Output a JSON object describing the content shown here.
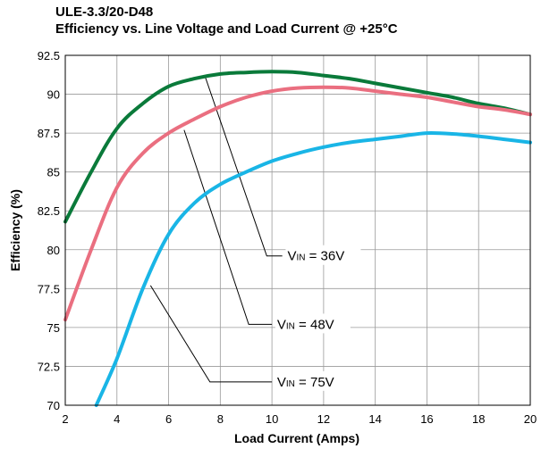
{
  "chart_data": {
    "type": "line",
    "title": "ULE-3.3/20-D48",
    "subtitle": "Efficiency vs. Line Voltage and Load Current @ +25°C",
    "xlabel": "Load Current (Amps)",
    "ylabel": "Efficiency (%)",
    "xlim": [
      2,
      20
    ],
    "ylim": [
      70,
      92.5
    ],
    "xticks": [
      "2",
      "4",
      "6",
      "8",
      "10",
      "12",
      "14",
      "16",
      "18",
      "20"
    ],
    "yticks": [
      "70",
      "72.5",
      "75",
      "77.5",
      "80",
      "82.5",
      "85",
      "87.5",
      "90",
      "92.5"
    ],
    "grid": true,
    "series": [
      {
        "label_prefix": "V",
        "label_sub": "IN",
        "label_suffix": " = 36V",
        "color": "#0a7a3a",
        "x": [
          2,
          3,
          4,
          5,
          6,
          7,
          8,
          9,
          10,
          11,
          12,
          13,
          14,
          15,
          16,
          17,
          18,
          19,
          20
        ],
        "y": [
          81.8,
          85.0,
          87.8,
          89.4,
          90.5,
          91.0,
          91.3,
          91.4,
          91.45,
          91.4,
          91.2,
          91.0,
          90.7,
          90.4,
          90.1,
          89.8,
          89.4,
          89.1,
          88.7
        ]
      },
      {
        "label_prefix": "V",
        "label_sub": "IN",
        "label_suffix": " = 48V",
        "color": "#ea6f80",
        "x": [
          2,
          3,
          4,
          5,
          6,
          7,
          8,
          9,
          10,
          11,
          12,
          13,
          14,
          15,
          16,
          17,
          18,
          19,
          20
        ],
        "y": [
          75.5,
          80.0,
          84.0,
          86.2,
          87.5,
          88.4,
          89.2,
          89.8,
          90.2,
          90.4,
          90.45,
          90.4,
          90.2,
          90.0,
          89.8,
          89.5,
          89.2,
          89.0,
          88.7
        ]
      },
      {
        "label_prefix": "V",
        "label_sub": "IN",
        "label_suffix": " = 75V",
        "color": "#19b5e6",
        "x": [
          3.2,
          4,
          5,
          6,
          7,
          8,
          9,
          10,
          11,
          12,
          13,
          14,
          15,
          16,
          17,
          18,
          19,
          20
        ],
        "y": [
          70.0,
          73.0,
          77.5,
          81.0,
          83.0,
          84.2,
          85.0,
          85.7,
          86.2,
          86.6,
          86.9,
          87.1,
          87.3,
          87.5,
          87.45,
          87.3,
          87.1,
          86.9
        ]
      }
    ]
  }
}
